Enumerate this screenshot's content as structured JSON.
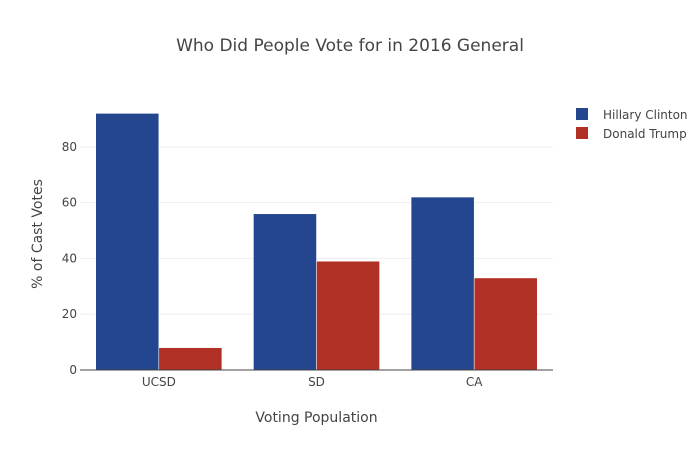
{
  "chart_data": {
    "type": "bar",
    "title": "Who Did People Vote for in 2016 General",
    "xlabel": "Voting Population",
    "ylabel": "% of Cast Votes",
    "categories": [
      "UCSD",
      "SD",
      "CA"
    ],
    "series": [
      {
        "name": "Hillary Clinton",
        "color": "#23468f",
        "values": [
          92,
          56,
          62
        ]
      },
      {
        "name": "Donald Trump",
        "color": "#b03025",
        "values": [
          8,
          39,
          33
        ]
      }
    ],
    "yticks": [
      0,
      20,
      40,
      60,
      80
    ],
    "ylim": [
      0,
      96.8
    ],
    "grid": true,
    "legend": "top-right",
    "barmode": "group"
  }
}
